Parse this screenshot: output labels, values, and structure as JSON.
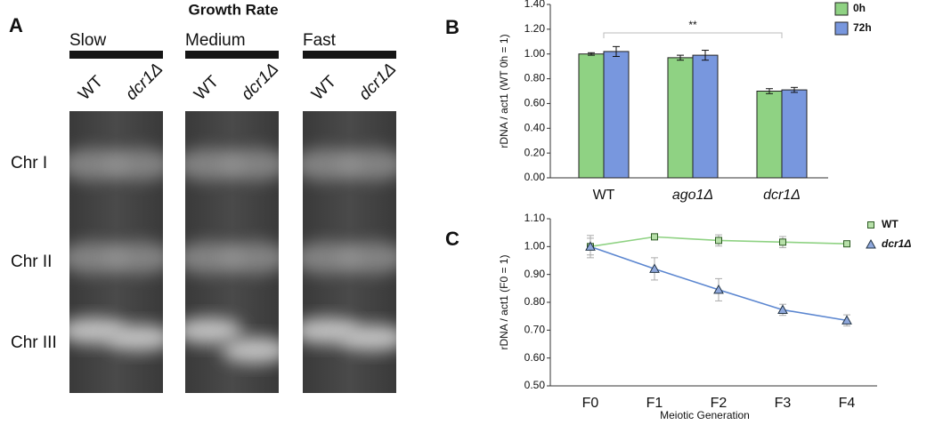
{
  "gel": {
    "panel_label": "A",
    "title": "Growth Rate",
    "groups": [
      "Slow",
      "Medium",
      "Fast"
    ],
    "lanes": [
      "WT",
      "dcr1Δ"
    ],
    "rows": [
      "Chr I",
      "Chr II",
      "Chr III"
    ]
  },
  "chart_data": [
    {
      "type": "bar",
      "panel_label": "B",
      "y_label": "rDNA / act1 (WT 0h = 1)",
      "categories": [
        "WT",
        "ago1Δ",
        "dcr1Δ"
      ],
      "series": [
        {
          "name": "0h",
          "color": "#8fd283",
          "values": [
            1.0,
            0.97,
            0.7
          ],
          "errors": [
            0.01,
            0.02,
            0.02
          ]
        },
        {
          "name": "72h",
          "color": "#7897de",
          "values": [
            1.02,
            0.99,
            0.71
          ],
          "errors": [
            0.04,
            0.04,
            0.02
          ]
        }
      ],
      "annotation": "**",
      "ylim": [
        0,
        1.4
      ],
      "yticks": [
        {
          "value": 0,
          "label": "0.00"
        },
        {
          "value": 0.2,
          "label": "0.20"
        },
        {
          "value": 0.4,
          "label": "0.40"
        },
        {
          "value": 0.6,
          "label": "0.60"
        },
        {
          "value": 0.8,
          "label": "0.80"
        },
        {
          "value": 1.0,
          "label": "1.00"
        },
        {
          "value": 1.2,
          "label": "1.20"
        },
        {
          "value": 1.4,
          "label": "1.40"
        }
      ],
      "legend": "top-right"
    },
    {
      "type": "line",
      "panel_label": "C",
      "y_label": "rDNA / act1 (F0 = 1)",
      "x_label": "Meiotic Generation",
      "categories": [
        "F0",
        "F1",
        "F2",
        "F3",
        "F4"
      ],
      "series": [
        {
          "name": "WT",
          "color": "#8fd283",
          "marker": "square",
          "values": [
            1.0,
            1.035,
            1.022,
            1.016,
            1.01
          ],
          "errors": [
            0.04,
            0.01,
            0.02,
            0.02,
            0.005
          ]
        },
        {
          "name": "dcr1Δ",
          "color": "#5b86d0",
          "marker": "triangle",
          "values": [
            1.0,
            0.92,
            0.845,
            0.773,
            0.735
          ],
          "errors": [
            0.03,
            0.04,
            0.04,
            0.02,
            0.02
          ]
        }
      ],
      "ylim": [
        0.5,
        1.1
      ],
      "yticks": [
        {
          "value": 0.5,
          "label": "0.50"
        },
        {
          "value": 0.6,
          "label": "0.60"
        },
        {
          "value": 0.7,
          "label": "0.70"
        },
        {
          "value": 0.8,
          "label": "0.80"
        },
        {
          "value": 0.9,
          "label": "0.90"
        },
        {
          "value": 1.0,
          "label": "1.00"
        },
        {
          "value": 1.1,
          "label": "1.10"
        }
      ],
      "legend": "top-right"
    }
  ]
}
